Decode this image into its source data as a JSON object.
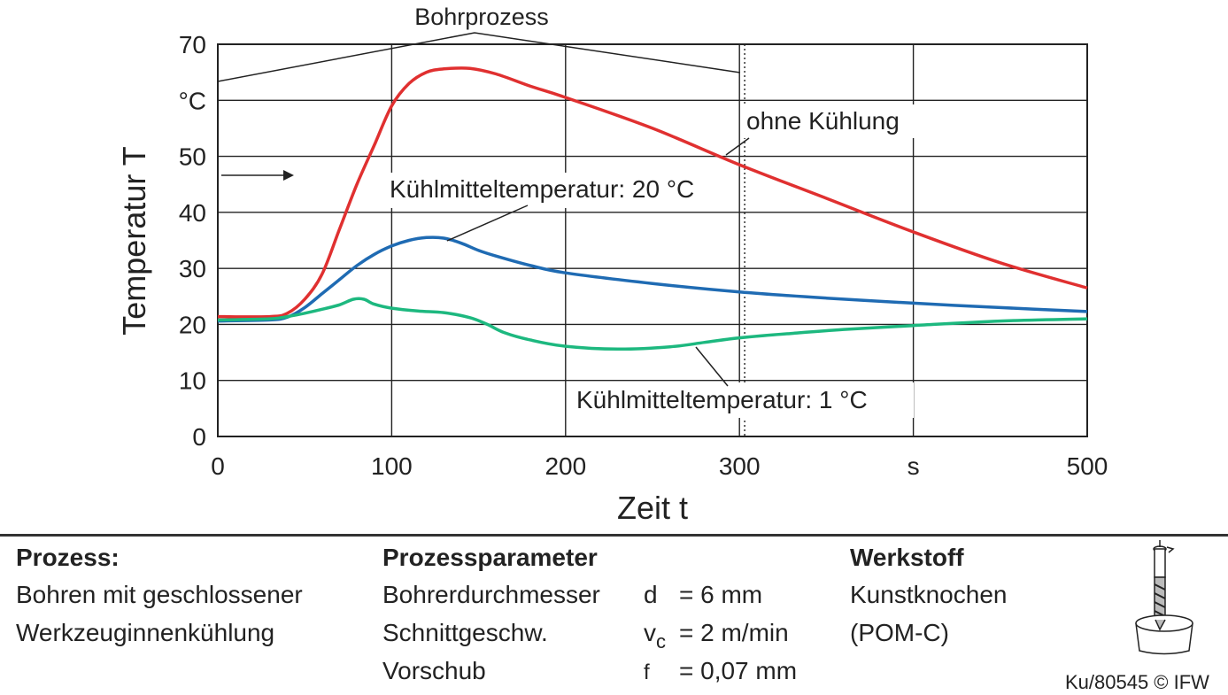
{
  "chart_data": {
    "type": "line",
    "ylabel": "Temperatur T",
    "y_unit": "°C",
    "xlabel": "Zeit t",
    "x_unit": "s",
    "xlim": [
      0,
      500
    ],
    "ylim": [
      0,
      70
    ],
    "x_ticks": [
      "0",
      "100",
      "200",
      "300",
      "s",
      "500"
    ],
    "y_ticks": [
      "0",
      "10",
      "20",
      "30",
      "40",
      "50",
      "70"
    ],
    "grid": true,
    "annotations": {
      "process": "Bohrprozess",
      "no_cooling": "ohne Kühlung",
      "coolant_20": "Kühlmitteltemperatur: 20 °C",
      "coolant_1": "Kühlmitteltemperatur: 1 °C"
    },
    "process_end_x": 303,
    "series": [
      {
        "key": "ohne_kuehlung",
        "color": "#e03030",
        "points": [
          [
            0,
            21.4
          ],
          [
            30,
            21.4
          ],
          [
            40,
            22
          ],
          [
            50,
            24.5
          ],
          [
            60,
            29
          ],
          [
            70,
            37
          ],
          [
            80,
            45
          ],
          [
            90,
            52
          ],
          [
            100,
            59
          ],
          [
            110,
            63
          ],
          [
            120,
            65
          ],
          [
            130,
            65.6
          ],
          [
            145,
            65.7
          ],
          [
            160,
            64.7
          ],
          [
            180,
            62.5
          ],
          [
            200,
            60.5
          ],
          [
            250,
            55
          ],
          [
            300,
            48.5
          ],
          [
            350,
            42.5
          ],
          [
            400,
            36.5
          ],
          [
            450,
            31
          ],
          [
            500,
            26.5
          ]
        ]
      },
      {
        "key": "kuehlmittel_20",
        "color": "#1f6bb3",
        "points": [
          [
            0,
            20.6
          ],
          [
            30,
            20.8
          ],
          [
            40,
            21.3
          ],
          [
            50,
            23
          ],
          [
            60,
            25.5
          ],
          [
            70,
            28
          ],
          [
            80,
            30.5
          ],
          [
            90,
            32.5
          ],
          [
            100,
            34
          ],
          [
            110,
            35
          ],
          [
            120,
            35.5
          ],
          [
            130,
            35.4
          ],
          [
            140,
            34.5
          ],
          [
            150,
            33.2
          ],
          [
            160,
            32.2
          ],
          [
            180,
            30.5
          ],
          [
            200,
            29.2
          ],
          [
            250,
            27.3
          ],
          [
            300,
            25.8
          ],
          [
            350,
            24.7
          ],
          [
            400,
            23.8
          ],
          [
            450,
            23
          ],
          [
            500,
            22.3
          ]
        ]
      },
      {
        "key": "kuehlmittel_1",
        "color": "#1db87f",
        "points": [
          [
            0,
            20.8
          ],
          [
            30,
            21
          ],
          [
            40,
            21.4
          ],
          [
            50,
            22
          ],
          [
            60,
            22.7
          ],
          [
            70,
            23.5
          ],
          [
            78,
            24.5
          ],
          [
            84,
            24.5
          ],
          [
            90,
            23.6
          ],
          [
            100,
            22.9
          ],
          [
            115,
            22.4
          ],
          [
            130,
            22.1
          ],
          [
            145,
            21.2
          ],
          [
            155,
            20
          ],
          [
            165,
            18.5
          ],
          [
            180,
            17.2
          ],
          [
            200,
            16.1
          ],
          [
            230,
            15.6
          ],
          [
            260,
            16
          ],
          [
            280,
            16.8
          ],
          [
            300,
            17.6
          ],
          [
            330,
            18.4
          ],
          [
            360,
            19.1
          ],
          [
            400,
            19.8
          ],
          [
            450,
            20.6
          ],
          [
            500,
            21
          ]
        ]
      }
    ]
  },
  "footer": {
    "process_heading": "Prozess:",
    "process_line1": "Bohren mit geschlossener",
    "process_line2": "Werkzeuginnenkühlung",
    "params_heading": "Prozessparameter",
    "params": [
      {
        "name": "Bohrerdurchmesser",
        "symbol": "d",
        "value": "= 6 mm"
      },
      {
        "name": "Schnittgeschw.",
        "symbol": "v",
        "symbol_sub": "c",
        "value": "= 2 m/min"
      },
      {
        "name": "Vorschub",
        "symbol": "f",
        "value": "= 0,07 mm"
      }
    ],
    "material_heading": "Werkstoff",
    "material_line1": "Kunstknochen",
    "material_line2": "(POM-C)",
    "copyright": "Ku/80545 © IFW"
  }
}
